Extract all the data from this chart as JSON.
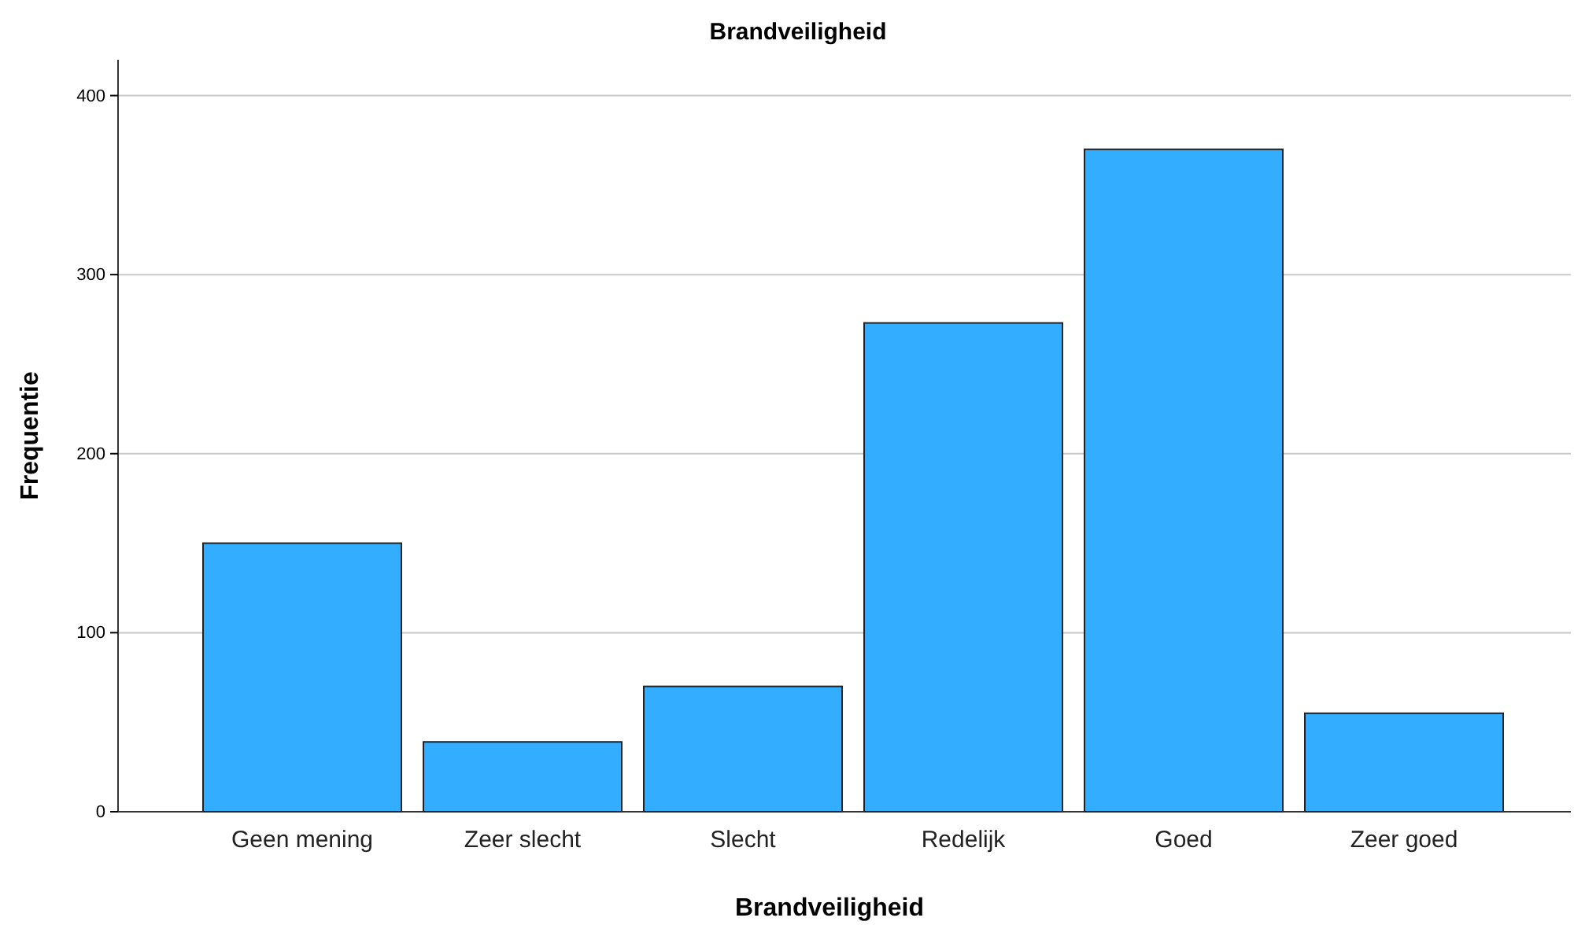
{
  "chart_data": {
    "type": "bar",
    "title": "Brandveiligheid",
    "xlabel": "Brandveiligheid",
    "ylabel": "Frequentie",
    "categories": [
      "Geen mening",
      "Zeer slecht",
      "Slecht",
      "Redelijk",
      "Goed",
      "Zeer goed"
    ],
    "values": [
      150,
      39,
      70,
      273,
      370,
      55
    ],
    "color": "#33adff",
    "ylim": [
      0,
      420
    ],
    "yticks": [
      0,
      100,
      200,
      300,
      400
    ],
    "grid": "y"
  }
}
